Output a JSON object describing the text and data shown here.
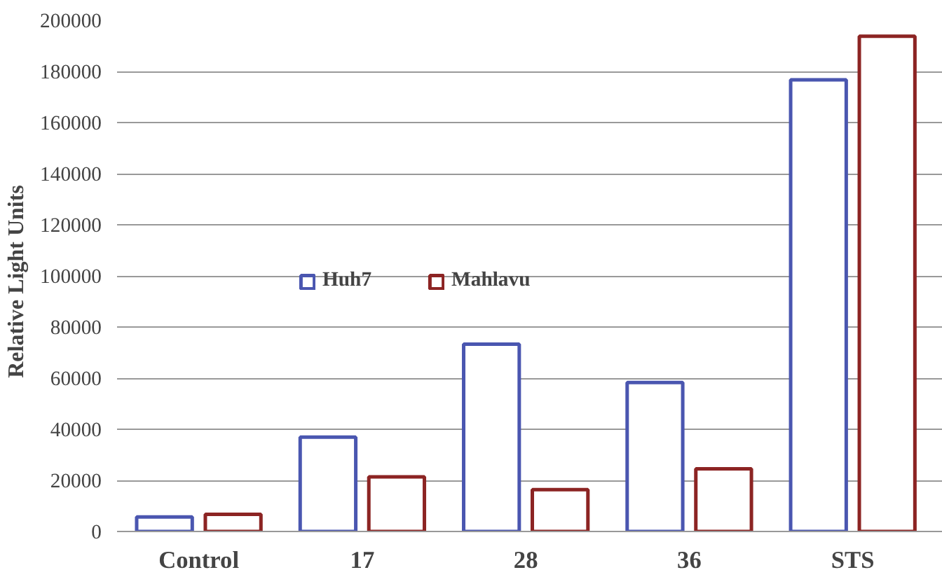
{
  "chart_data": {
    "type": "bar",
    "ylabel": "Relative  Light  Units",
    "categories": [
      "Control",
      "17",
      "28",
      "36",
      "STS"
    ],
    "series": [
      {
        "name": "Huh7",
        "color": "#4a56b0",
        "values": [
          5700,
          36900,
          73300,
          58300,
          176700
        ]
      },
      {
        "name": "Mahlavu",
        "color": "#8c2423",
        "values": [
          6700,
          21400,
          16400,
          24500,
          193800
        ]
      }
    ],
    "ylim": [
      0,
      200000
    ],
    "yticks": [
      0,
      20000,
      40000,
      60000,
      80000,
      100000,
      120000,
      140000,
      160000,
      180000,
      200000
    ],
    "grid": "y",
    "legend": "center"
  }
}
